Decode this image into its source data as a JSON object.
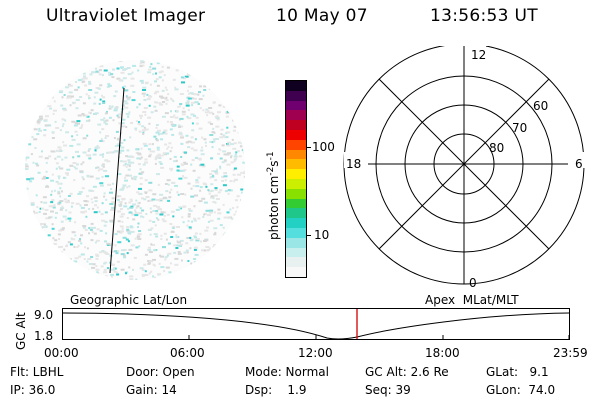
{
  "header": {
    "title": "Ultraviolet Imager",
    "date": "10 May 07",
    "time": "13:56:53 UT"
  },
  "colorbar": {
    "unit": "photon cm-2s-1",
    "unit_main": "photon cm",
    "unit_exp1": "-2",
    "unit_mid": "s",
    "unit_exp2": "-1",
    "ticks": [
      "100",
      "10"
    ],
    "colors": [
      "#f8f8f8",
      "#e8f0f0",
      "#c8eeee",
      "#9ae6e6",
      "#55dede",
      "#22d0c4",
      "#1fc88a",
      "#33cc33",
      "#88e000",
      "#ccee00",
      "#ffee00",
      "#ffbb00",
      "#ff8800",
      "#ff4400",
      "#ee0000",
      "#c00020",
      "#a00050",
      "#700070",
      "#400050",
      "#100020"
    ]
  },
  "polar": {
    "clock_labels": {
      "top": "12",
      "left": "18",
      "right": "6",
      "bottom": "0"
    },
    "lat_labels": [
      "60",
      "70",
      "80"
    ]
  },
  "timeline": {
    "left_label": "Geographic Lat/Lon",
    "right_label": "Apex  MLat/MLT",
    "axis_label": "GC Alt",
    "y_ticks": [
      "9.0",
      "1.8"
    ],
    "x_ticks": [
      "00:00",
      "06:00",
      "12:00",
      "18:00",
      "23:59"
    ],
    "marker_time": "13:56:53"
  },
  "status": {
    "flt": "Flt: LBHL",
    "door": "Door: Open",
    "mode": "Mode: Normal",
    "gcalt": "GC Alt: 2.6 Re",
    "glat": "GLat:   9.1",
    "ip": "IP: 36.0",
    "gain": "Gain: 14",
    "dsp": "Dsp:    1.9",
    "seq": "Seq: 39",
    "glon": "GLon:  74.0"
  }
}
